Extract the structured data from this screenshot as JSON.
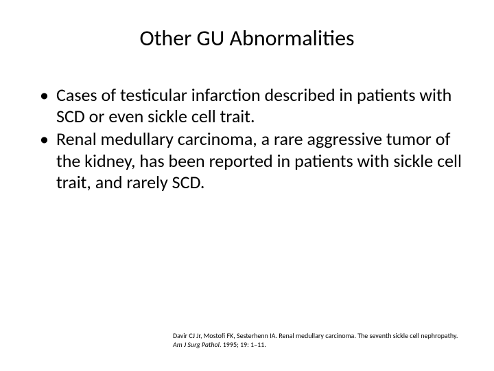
{
  "title": "Other GU Abnormalities",
  "bullets": [
    "Cases of testicular infarction described in patients with SCD or even sickle cell trait.",
    "Renal medullary carcinoma, a rare aggressive tumor of the kidney, has been reported in patients with sickle cell trait, and rarely SCD."
  ],
  "citation": {
    "line1": "Davir CJ Jr, Mostofi FK, Sesterhenn IA. Renal medullary carcinoma. The seventh sickle cell nephropathy.",
    "line2_prefix": "Am J Surg Pathol",
    "line2_suffix": ". 1995; 19: 1–11."
  },
  "colors": {
    "background": "#ffffff",
    "text": "#000000"
  },
  "typography": {
    "title_fontsize": 32,
    "body_fontsize": 26,
    "citation_fontsize": 10,
    "font_family": "Calibri"
  }
}
